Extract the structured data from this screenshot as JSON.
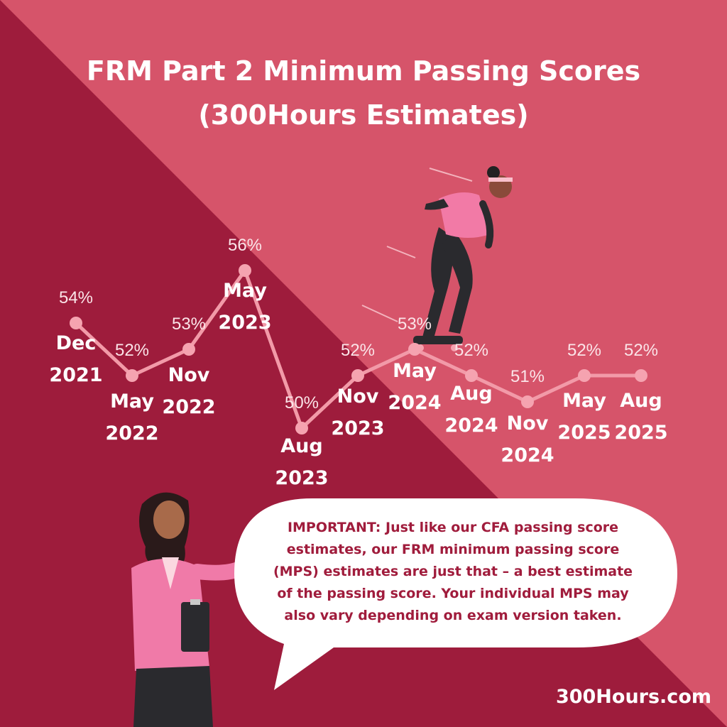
{
  "header": {
    "title_line1": "FRM Part 2 Minimum Passing Scores",
    "title_line2": "(300Hours Estimates)"
  },
  "colors": {
    "background_dark": "#9e1c3c",
    "background_light": "#d6546a",
    "line": "#f29aa8",
    "marker": "#f5a3b0",
    "label_text": "#fbe4e8",
    "callout_bg": "#ffffff",
    "callout_text": "#a01c3c"
  },
  "chart_data": {
    "type": "line",
    "title": "FRM Part 2 Minimum Passing Scores (300Hours Estimates)",
    "categories": [
      [
        "Dec",
        "2021"
      ],
      [
        "May",
        "2022"
      ],
      [
        "Nov",
        "2022"
      ],
      [
        "May",
        "2023"
      ],
      [
        "Aug",
        "2023"
      ],
      [
        "Nov",
        "2023"
      ],
      [
        "May",
        "2024"
      ],
      [
        "Aug",
        "2024"
      ],
      [
        "Nov",
        "2024"
      ],
      [
        "May",
        "2025"
      ],
      [
        "Aug",
        "2025"
      ]
    ],
    "values": [
      54,
      52,
      53,
      56,
      50,
      52,
      53,
      52,
      51,
      52,
      52
    ],
    "value_labels": [
      "54%",
      "52%",
      "53%",
      "56%",
      "50%",
      "52%",
      "53%",
      "52%",
      "51%",
      "52%",
      "52%"
    ],
    "unit": "%",
    "xlabel": "",
    "ylabel": "",
    "grid": false
  },
  "callout": {
    "text": "IMPORTANT: Just like our CFA passing score estimates, our FRM minimum passing score (MPS) estimates are just that – a best estimate of the passing score. Your individual MPS may also vary depending on exam version taken."
  },
  "footer": {
    "brand": "300Hours.com"
  },
  "illustrations": {
    "skater": "skateboarding-woman-illustration",
    "presenter": "woman-with-clipboard-illustration"
  }
}
